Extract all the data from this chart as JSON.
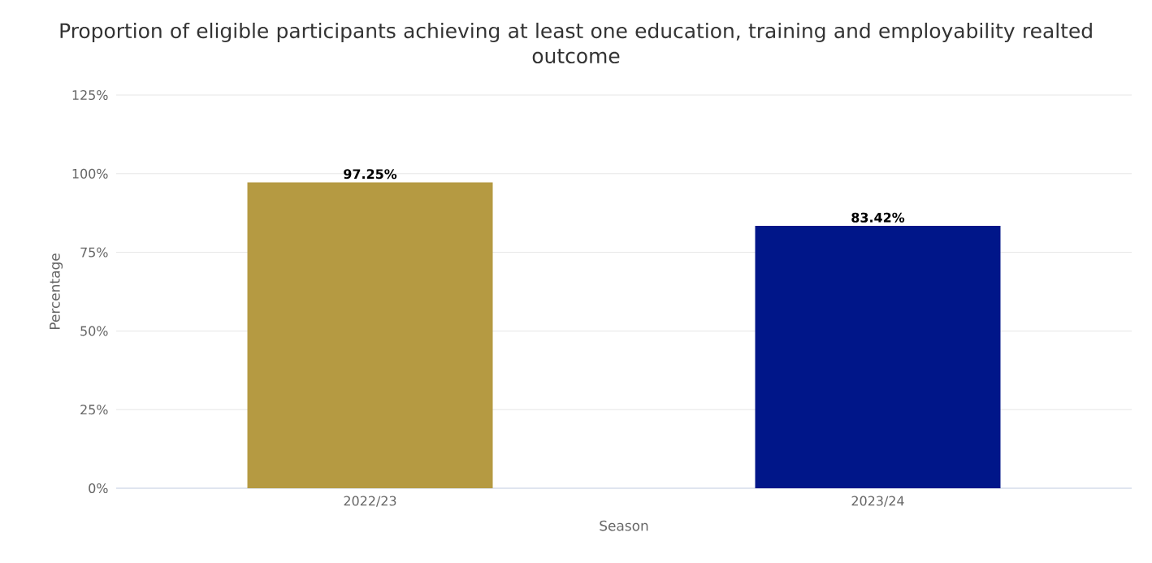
{
  "chart_data": {
    "type": "bar",
    "title": "Proportion of eligible participants achieving at least one education, training and employability realted outcome",
    "xlabel": "Season",
    "ylabel": "Percentage",
    "categories": [
      "2022/23",
      "2023/24"
    ],
    "values": [
      97.25,
      83.42
    ],
    "colors": [
      "#b59a42",
      "#001689"
    ],
    "value_labels": [
      "97.25%",
      "83.42%"
    ],
    "ylim": [
      0,
      125
    ],
    "yticks": [
      {
        "value": 0,
        "label": "0%"
      },
      {
        "value": 25,
        "label": "25%"
      },
      {
        "value": 50,
        "label": "50%"
      },
      {
        "value": 75,
        "label": "75%"
      },
      {
        "value": 100,
        "label": "100%"
      },
      {
        "value": 125,
        "label": "125%"
      }
    ],
    "grid": "y"
  }
}
